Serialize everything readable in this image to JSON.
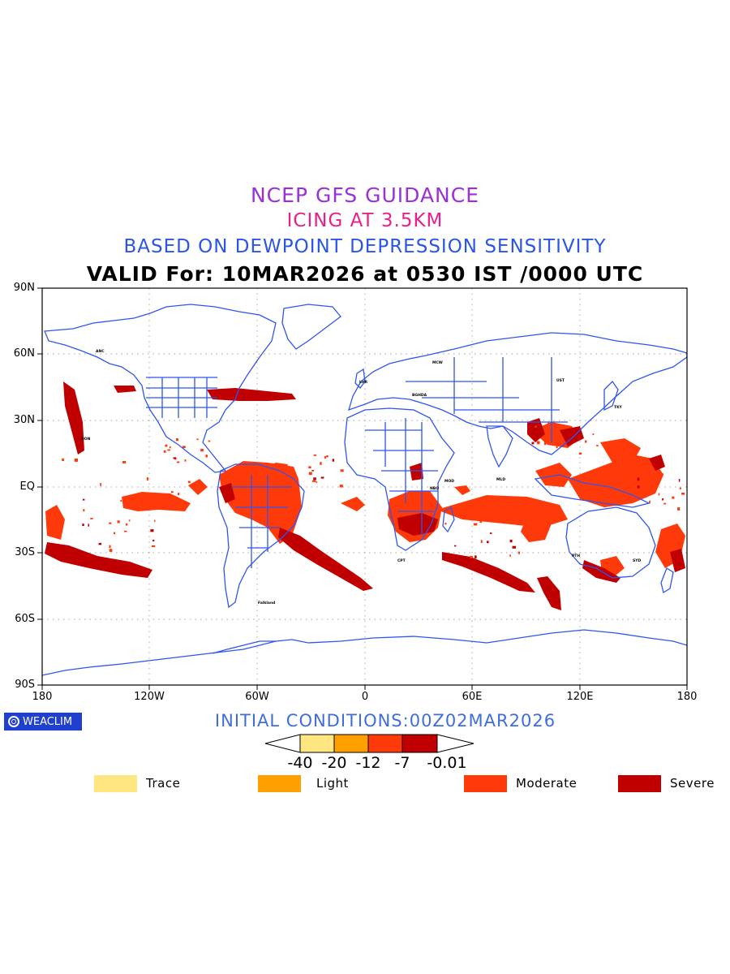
{
  "titles": {
    "line1": "NCEP GFS GUIDANCE",
    "line2": "ICING AT 3.5KM",
    "line3": "BASED ON DEWPOINT DEPRESSION SENSITIVITY",
    "line4": "VALID For: 10MAR2026 at 0530 IST /0000 UTC"
  },
  "colors": {
    "line1": "#9a30d8",
    "line2": "#e8208a",
    "line3": "#2b55e8",
    "coast": "#2f55f0",
    "trace": "#ffe680",
    "light": "#ffa000",
    "moderate": "#ff3a0a",
    "severe": "#c00000"
  },
  "axes": {
    "lat_labels": [
      "90N",
      "60N",
      "30N",
      "EQ",
      "30S",
      "60S",
      "90S"
    ],
    "lon_labels": [
      "180",
      "120W",
      "60W",
      "0",
      "60E",
      "120E",
      "180"
    ]
  },
  "logo": {
    "text": "WEACLIM",
    "icon": "copyright-circle-icon"
  },
  "initial_conditions": "INITIAL CONDITIONS:00Z02MAR2026",
  "colorbar": {
    "ticks": [
      "-40",
      "-20",
      "-12",
      "-7",
      "-0.01"
    ]
  },
  "legend": [
    {
      "label": "Trace"
    },
    {
      "label": "Light"
    },
    {
      "label": "Moderate"
    },
    {
      "label": "Severe"
    }
  ],
  "stations": [
    "ANC",
    "HON",
    "MCW",
    "UST",
    "TKY",
    "LHR",
    "BGHDA",
    "Falkland",
    "PTH",
    "SYD",
    "MLD",
    "MOD",
    "NBO",
    "CPT"
  ]
}
